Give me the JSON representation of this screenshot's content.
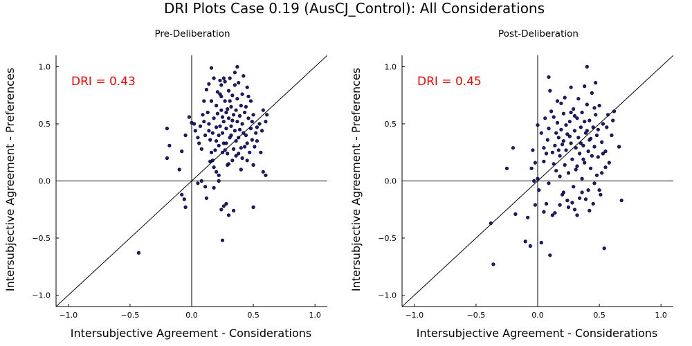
{
  "figure": {
    "title": "DRI Plots Case 0.19 (AusCJ_Control): All Considerations"
  },
  "chart_data": [
    {
      "type": "scatter",
      "title": "Pre-Deliberation",
      "xlabel": "Intersubjective Agreement - Considerations",
      "ylabel": "Intersubjective Agreement - Preferences",
      "xlim": [
        -1.1,
        1.1
      ],
      "ylim": [
        -1.1,
        1.1
      ],
      "xticks": [
        {
          "value": -1.0,
          "label": "−1.0"
        },
        {
          "value": -0.5,
          "label": "−0.5"
        },
        {
          "value": 0.0,
          "label": "0.0"
        },
        {
          "value": 0.5,
          "label": "0.5"
        },
        {
          "value": 1.0,
          "label": "1.0"
        }
      ],
      "yticks": [
        {
          "value": -1.0,
          "label": "−1.0"
        },
        {
          "value": -0.5,
          "label": "−0.5"
        },
        {
          "value": 0.0,
          "label": "0.0"
        },
        {
          "value": 0.5,
          "label": "0.5"
        },
        {
          "value": 1.0,
          "label": "1.0"
        }
      ],
      "grid": false,
      "annotation": {
        "text": "DRI = 0.43",
        "color": "#ff0000"
      },
      "point_color": "#1a1a80",
      "reference_lines": [
        "x=0",
        "y=0",
        "y=x"
      ],
      "points": [
        [
          -0.2,
          0.46
        ],
        [
          -0.18,
          0.31
        ],
        [
          -0.2,
          0.2
        ],
        [
          -0.1,
          0.1
        ],
        [
          -0.08,
          0.26
        ],
        [
          -0.05,
          0.4
        ],
        [
          -0.02,
          0.56
        ],
        [
          0.0,
          0.51
        ],
        [
          0.02,
          0.5
        ],
        [
          0.03,
          0.44
        ],
        [
          0.05,
          0.38
        ],
        [
          0.06,
          0.33
        ],
        [
          0.08,
          0.28
        ],
        [
          0.1,
          0.52
        ],
        [
          0.1,
          0.7
        ],
        [
          0.12,
          0.8
        ],
        [
          0.13,
          0.6
        ],
        [
          0.14,
          0.44
        ],
        [
          0.15,
          0.36
        ],
        [
          0.16,
          0.25
        ],
        [
          0.17,
          0.18
        ],
        [
          0.18,
          0.12
        ],
        [
          0.18,
          0.9
        ],
        [
          0.18,
          0.55
        ],
        [
          0.2,
          0.66
        ],
        [
          0.2,
          0.47
        ],
        [
          0.22,
          0.4
        ],
        [
          0.22,
          0.31
        ],
        [
          0.22,
          0.05
        ],
        [
          0.22,
          0.0
        ],
        [
          0.23,
          0.88
        ],
        [
          0.23,
          0.76
        ],
        [
          0.24,
          0.84
        ],
        [
          0.24,
          0.62
        ],
        [
          0.25,
          0.56
        ],
        [
          0.25,
          0.42
        ],
        [
          0.25,
          0.25
        ],
        [
          0.26,
          0.33
        ],
        [
          0.26,
          0.52
        ],
        [
          0.27,
          0.87
        ],
        [
          0.27,
          0.7
        ],
        [
          0.28,
          0.46
        ],
        [
          0.28,
          0.6
        ],
        [
          0.29,
          0.14
        ],
        [
          0.29,
          0.24
        ],
        [
          0.3,
          0.79
        ],
        [
          0.3,
          0.55
        ],
        [
          0.31,
          0.38
        ],
        [
          0.31,
          0.9
        ],
        [
          0.32,
          0.65
        ],
        [
          0.32,
          0.48
        ],
        [
          0.33,
          0.18
        ],
        [
          0.33,
          0.75
        ],
        [
          0.34,
          0.28
        ],
        [
          0.34,
          0.58
        ],
        [
          0.35,
          0.44
        ],
        [
          0.35,
          0.95
        ],
        [
          0.36,
          0.62
        ],
        [
          0.36,
          0.35
        ],
        [
          0.37,
          0.52
        ],
        [
          0.37,
          0.72
        ],
        [
          0.38,
          0.24
        ],
        [
          0.38,
          0.86
        ],
        [
          0.39,
          0.45
        ],
        [
          0.4,
          0.66
        ],
        [
          0.4,
          0.1
        ],
        [
          0.41,
          0.2
        ],
        [
          0.41,
          0.5
        ],
        [
          0.42,
          0.92
        ],
        [
          0.43,
          0.3
        ],
        [
          0.43,
          0.6
        ],
        [
          0.44,
          0.4
        ],
        [
          0.45,
          0.82
        ],
        [
          0.45,
          0.18
        ],
        [
          0.46,
          0.55
        ],
        [
          0.47,
          0.25
        ],
        [
          0.48,
          0.7
        ],
        [
          0.48,
          0.46
        ],
        [
          0.49,
          0.36
        ],
        [
          0.5,
          0.14
        ],
        [
          0.5,
          0.58
        ],
        [
          0.51,
          0.3
        ],
        [
          0.52,
          0.42
        ],
        [
          0.53,
          0.35
        ],
        [
          0.55,
          0.5
        ],
        [
          0.56,
          0.25
        ],
        [
          0.57,
          0.44
        ],
        [
          0.58,
          0.62
        ],
        [
          0.58,
          0.08
        ],
        [
          0.6,
          0.52
        ],
        [
          0.6,
          0.05
        ],
        [
          0.61,
          0.58
        ],
        [
          0.05,
          -0.02
        ],
        [
          0.08,
          0.0
        ],
        [
          0.11,
          -0.05
        ],
        [
          0.12,
          -0.15
        ],
        [
          0.15,
          0.17
        ],
        [
          0.18,
          -0.06
        ],
        [
          0.2,
          0.08
        ],
        [
          0.24,
          -0.25
        ],
        [
          0.26,
          -0.22
        ],
        [
          0.28,
          -0.2
        ],
        [
          0.3,
          -0.3
        ],
        [
          0.34,
          -0.26
        ],
        [
          0.5,
          -0.23
        ],
        [
          -0.08,
          -0.12
        ],
        [
          -0.06,
          -0.16
        ],
        [
          -0.05,
          -0.23
        ],
        [
          0.25,
          -0.52
        ],
        [
          -0.43,
          -0.63
        ],
        [
          0.16,
          0.99
        ],
        [
          0.37,
          1.0
        ],
        [
          0.26,
          0.9
        ],
        [
          0.14,
          0.85
        ],
        [
          0.21,
          0.78
        ],
        [
          0.09,
          0.58
        ],
        [
          0.19,
          0.27
        ],
        [
          0.3,
          0.15
        ],
        [
          0.4,
          0.29
        ],
        [
          0.44,
          0.65
        ],
        [
          0.53,
          0.47
        ],
        [
          0.07,
          0.48
        ],
        [
          0.11,
          0.4
        ],
        [
          0.16,
          0.7
        ],
        [
          0.24,
          0.74
        ],
        [
          0.35,
          0.84
        ],
        [
          0.46,
          0.74
        ],
        [
          0.39,
          0.57
        ],
        [
          0.32,
          0.4
        ],
        [
          0.28,
          0.33
        ],
        [
          0.21,
          0.59
        ],
        [
          0.14,
          0.5
        ],
        [
          0.29,
          0.63
        ],
        [
          0.36,
          0.22
        ],
        [
          0.42,
          0.42
        ],
        [
          0.49,
          0.52
        ],
        [
          0.2,
          0.35
        ],
        [
          0.33,
          0.53
        ],
        [
          0.27,
          0.27
        ],
        [
          0.45,
          0.33
        ],
        [
          0.17,
          0.42
        ],
        [
          0.38,
          0.38
        ],
        [
          0.31,
          0.7
        ],
        [
          0.23,
          0.48
        ],
        [
          0.41,
          0.76
        ]
      ]
    },
    {
      "type": "scatter",
      "title": "Post-Deliberation",
      "xlabel": "Intersubjective Agreement - Considerations",
      "ylabel": "Intersubjective Agreement - Preferences",
      "xlim": [
        -1.1,
        1.1
      ],
      "ylim": [
        -1.1,
        1.1
      ],
      "xticks": [
        {
          "value": -1.0,
          "label": "−1.0"
        },
        {
          "value": -0.5,
          "label": "−0.5"
        },
        {
          "value": 0.0,
          "label": "0.0"
        },
        {
          "value": 0.5,
          "label": "0.5"
        },
        {
          "value": 1.0,
          "label": "1.0"
        }
      ],
      "yticks": [
        {
          "value": -1.0,
          "label": "−1.0"
        },
        {
          "value": -0.5,
          "label": "−0.5"
        },
        {
          "value": 0.0,
          "label": "0.0"
        },
        {
          "value": 0.5,
          "label": "0.5"
        },
        {
          "value": 1.0,
          "label": "1.0"
        }
      ],
      "grid": false,
      "annotation": {
        "text": "DRI = 0.45",
        "color": "#ff0000"
      },
      "point_color": "#1a1a80",
      "reference_lines": [
        "x=0",
        "y=0",
        "y=x"
      ],
      "points": [
        [
          -0.36,
          -0.73
        ],
        [
          -0.38,
          -0.37
        ],
        [
          -0.25,
          0.11
        ],
        [
          -0.2,
          0.29
        ],
        [
          -0.18,
          -0.29
        ],
        [
          -0.1,
          -0.53
        ],
        [
          -0.08,
          -0.32
        ],
        [
          -0.06,
          -0.57
        ],
        [
          -0.05,
          0.11
        ],
        [
          -0.04,
          0.27
        ],
        [
          -0.03,
          0.0
        ],
        [
          -0.02,
          0.16
        ],
        [
          -0.02,
          -0.21
        ],
        [
          0.0,
          0.02
        ],
        [
          0.01,
          -0.08
        ],
        [
          0.03,
          0.42
        ],
        [
          0.05,
          0.17
        ],
        [
          0.05,
          0.29
        ],
        [
          0.06,
          0.55
        ],
        [
          0.07,
          0.24
        ],
        [
          0.08,
          0.36
        ],
        [
          0.09,
          0.46
        ],
        [
          0.09,
          -0.02
        ],
        [
          0.1,
          0.79
        ],
        [
          0.11,
          0.61
        ],
        [
          0.12,
          0.25
        ],
        [
          0.12,
          -0.3
        ],
        [
          0.13,
          0.15
        ],
        [
          0.14,
          0.31
        ],
        [
          0.15,
          0.09
        ],
        [
          0.16,
          0.51
        ],
        [
          0.16,
          0.7
        ],
        [
          0.17,
          0.38
        ],
        [
          0.18,
          0.22
        ],
        [
          0.18,
          0.04
        ],
        [
          0.19,
          0.45
        ],
        [
          0.2,
          0.32
        ],
        [
          0.2,
          -0.12
        ],
        [
          0.21,
          0.59
        ],
        [
          0.22,
          0.14
        ],
        [
          0.22,
          0.73
        ],
        [
          0.23,
          0.27
        ],
        [
          0.24,
          0.41
        ],
        [
          0.24,
          -0.17
        ],
        [
          0.25,
          0.07
        ],
        [
          0.26,
          0.52
        ],
        [
          0.27,
          0.33
        ],
        [
          0.27,
          0.82
        ],
        [
          0.28,
          0.19
        ],
        [
          0.29,
          0.63
        ],
        [
          0.29,
          -0.05
        ],
        [
          0.3,
          0.44
        ],
        [
          0.31,
          0.29
        ],
        [
          0.31,
          0.1
        ],
        [
          0.32,
          0.55
        ],
        [
          0.33,
          0.38
        ],
        [
          0.33,
          0.72
        ],
        [
          0.34,
          0.24
        ],
        [
          0.34,
          -0.15
        ],
        [
          0.35,
          0.47
        ],
        [
          0.36,
          0.6
        ],
        [
          0.36,
          0.02
        ],
        [
          0.37,
          0.31
        ],
        [
          0.38,
          0.83
        ],
        [
          0.38,
          0.16
        ],
        [
          0.39,
          0.42
        ],
        [
          0.4,
          0.67
        ],
        [
          0.4,
          1.0
        ],
        [
          0.41,
          0.26
        ],
        [
          0.41,
          -0.08
        ],
        [
          0.42,
          0.53
        ],
        [
          0.43,
          0.37
        ],
        [
          0.43,
          0.11
        ],
        [
          0.44,
          0.77
        ],
        [
          0.45,
          0.47
        ],
        [
          0.45,
          -0.2
        ],
        [
          0.46,
          0.3
        ],
        [
          0.47,
          0.58
        ],
        [
          0.48,
          0.05
        ],
        [
          0.48,
          0.4
        ],
        [
          0.49,
          0.21
        ],
        [
          0.5,
          0.66
        ],
        [
          0.51,
          -0.12
        ],
        [
          0.52,
          0.34
        ],
        [
          0.53,
          0.5
        ],
        [
          0.54,
          -0.59
        ],
        [
          0.55,
          0.26
        ],
        [
          0.56,
          0.47
        ],
        [
          0.57,
          0.58
        ],
        [
          0.58,
          0.16
        ],
        [
          0.6,
          0.4
        ],
        [
          0.61,
          0.53
        ],
        [
          0.62,
          0.61
        ],
        [
          0.66,
          0.3
        ],
        [
          0.68,
          -0.17
        ],
        [
          0.0,
          0.49
        ],
        [
          0.03,
          -0.54
        ],
        [
          0.05,
          -0.27
        ],
        [
          0.07,
          -0.2
        ],
        [
          0.1,
          -0.65
        ],
        [
          0.14,
          -0.28
        ],
        [
          0.18,
          -0.21
        ],
        [
          0.21,
          -0.1
        ],
        [
          0.25,
          -0.23
        ],
        [
          0.28,
          -0.19
        ],
        [
          0.3,
          -0.25
        ],
        [
          0.32,
          -0.3
        ],
        [
          0.36,
          -0.1
        ],
        [
          0.39,
          -0.16
        ],
        [
          0.42,
          -0.26
        ],
        [
          0.46,
          -0.02
        ],
        [
          0.5,
          -0.08
        ],
        [
          0.52,
          0.07
        ],
        [
          0.55,
          0.12
        ],
        [
          0.09,
          0.91
        ],
        [
          0.15,
          0.42
        ],
        [
          0.19,
          0.68
        ],
        [
          0.23,
          0.49
        ],
        [
          0.26,
          0.39
        ],
        [
          0.3,
          0.57
        ],
        [
          0.35,
          0.33
        ],
        [
          0.37,
          0.19
        ],
        [
          0.4,
          0.44
        ],
        [
          0.44,
          0.22
        ],
        [
          0.47,
          0.86
        ],
        [
          0.13,
          0.56
        ],
        [
          0.17,
          0.27
        ],
        [
          0.21,
          0.35
        ],
        [
          0.27,
          0.6
        ],
        [
          0.32,
          0.13
        ],
        [
          0.38,
          0.52
        ],
        [
          0.42,
          0.36
        ],
        [
          0.46,
          0.64
        ],
        [
          0.49,
          0.45
        ],
        [
          0.53,
          0.24
        ]
      ]
    }
  ]
}
